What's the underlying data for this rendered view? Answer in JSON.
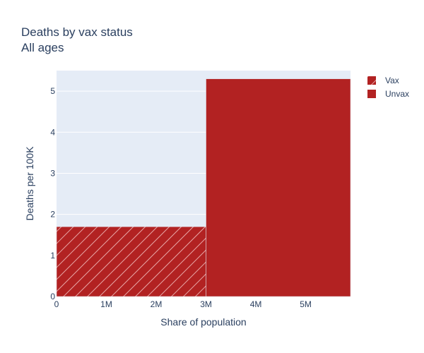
{
  "chart_data": {
    "type": "bar",
    "title": "Deaths by vax status",
    "subtitle": "All ages",
    "xlabel": "Share of population",
    "ylabel": "Deaths per 100K",
    "xlim": [
      0,
      5900000
    ],
    "ylim": [
      0,
      5.5
    ],
    "x_ticks": [
      {
        "value": 0,
        "label": "0"
      },
      {
        "value": 1000000,
        "label": "1M"
      },
      {
        "value": 2000000,
        "label": "2M"
      },
      {
        "value": 3000000,
        "label": "3M"
      },
      {
        "value": 4000000,
        "label": "4M"
      },
      {
        "value": 5000000,
        "label": "5M"
      }
    ],
    "y_ticks": [
      {
        "value": 0,
        "label": "0"
      },
      {
        "value": 1,
        "label": "1"
      },
      {
        "value": 2,
        "label": "2"
      },
      {
        "value": 3,
        "label": "3"
      },
      {
        "value": 4,
        "label": "4"
      },
      {
        "value": 5,
        "label": "5"
      }
    ],
    "grid": true,
    "legend_position": "top-right",
    "series": [
      {
        "name": "Vax",
        "x_start": 0,
        "x_end": 3000000,
        "value": 1.7,
        "color": "#b22222",
        "pattern": "diagonal-hatch"
      },
      {
        "name": "Unvax",
        "x_start": 3000000,
        "x_end": 5900000,
        "value": 5.3,
        "color": "#b22222",
        "pattern": "solid"
      }
    ],
    "plot_background": "#e5ecf6"
  }
}
